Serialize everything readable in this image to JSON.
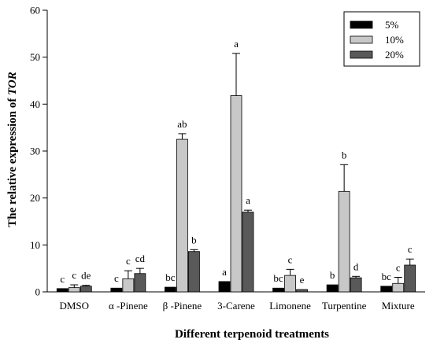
{
  "chart_data": {
    "type": "bar",
    "xlabel": "Different terpenoid treatments",
    "ylabel_prefix": "The relative expression of ",
    "ylabel_gene": "TOR",
    "ylim": [
      0,
      60
    ],
    "yticks": [
      0,
      10,
      20,
      30,
      40,
      50,
      60
    ],
    "grid": false,
    "legend_position": "top-right",
    "categories": [
      "DMSO",
      "α -Pinene",
      "β -Pinene",
      "3-Carene",
      "Limonene",
      "Turpentine",
      "Mixture"
    ],
    "series": [
      {
        "name": "5%",
        "color": "#000000",
        "values": [
          0.7,
          0.8,
          1.0,
          2.2,
          0.8,
          1.5,
          1.2
        ],
        "errors": [
          0.0,
          0.0,
          0.0,
          0.0,
          0.0,
          0.0,
          0.0
        ],
        "significance": [
          "c",
          "c",
          "bc",
          "a",
          "bc",
          "b",
          "bc"
        ]
      },
      {
        "name": "10%",
        "color": "#c8c8c8",
        "values": [
          0.9,
          2.8,
          32.5,
          41.8,
          3.5,
          21.4,
          1.8
        ],
        "errors": [
          0.6,
          1.7,
          1.2,
          9.0,
          1.3,
          5.7,
          1.3
        ],
        "significance": [
          "c",
          "c",
          "ab",
          "a",
          "c",
          "b",
          "c"
        ]
      },
      {
        "name": "20%",
        "color": "#595959",
        "values": [
          1.2,
          3.9,
          8.6,
          17.0,
          0.5,
          3.0,
          5.7
        ],
        "errors": [
          0.2,
          1.1,
          0.4,
          0.4,
          0.0,
          0.3,
          1.3
        ],
        "significance": [
          "de",
          "cd",
          "b",
          "a",
          "e",
          "d",
          "c"
        ]
      }
    ]
  }
}
